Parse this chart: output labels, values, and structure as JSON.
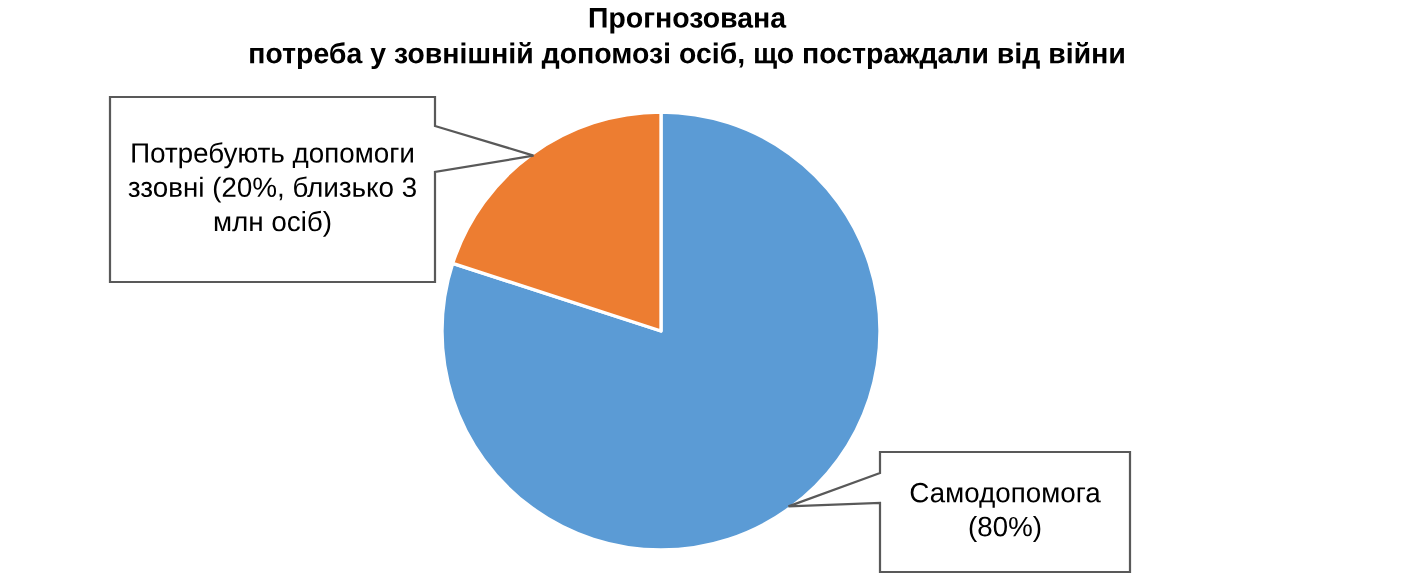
{
  "chart_data": {
    "type": "pie",
    "title": "Прогнозована\nпотреба у зовнішній допомозі осіб, що постраждали від війни",
    "categories": [
      "Самодопомога (80%)",
      "Потребують допомоги ззовні (20%, близько 3 млн осіб)"
    ],
    "values": [
      80,
      20
    ],
    "colors": [
      "#5b9bd5",
      "#ed7d31"
    ]
  }
}
